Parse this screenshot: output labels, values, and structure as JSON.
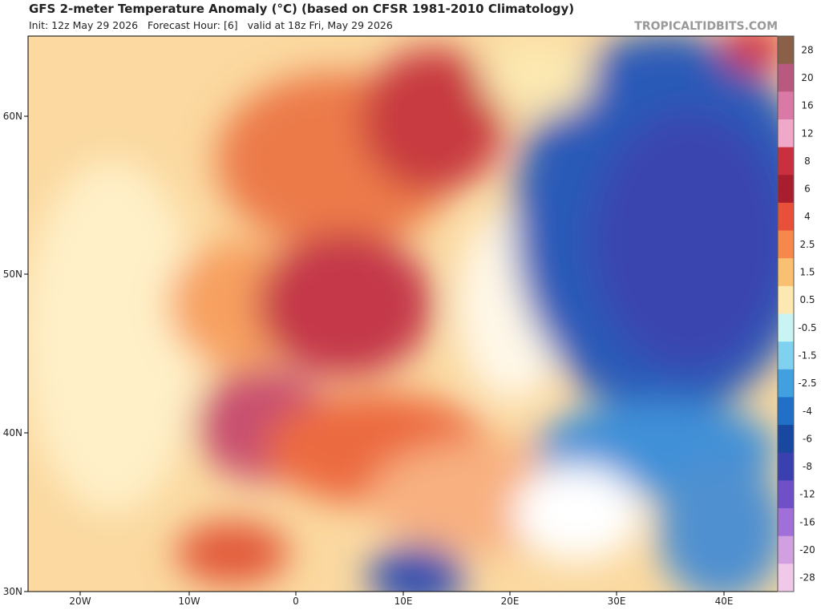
{
  "header": {
    "title": "GFS 2-meter Temperature Anomaly (°C) (based on CFSR 1981-2010 Climatology)",
    "subtitle": "Init: 12z May 29 2026   Forecast Hour: [6]   valid at 18z Fri, May 29 2026",
    "watermark": "TROPICALTIDBITS.COM"
  },
  "map": {
    "lat_labels": [
      "60N",
      "50N",
      "40N",
      "30N"
    ],
    "lon_labels": [
      "20W",
      "10W",
      "0",
      "10E",
      "20E",
      "30E",
      "40E"
    ]
  },
  "colorbar": {
    "labels": [
      "28",
      "20",
      "16",
      "12",
      "8",
      "6",
      "4",
      "2.5",
      "1.5",
      "0.5",
      "-0.5",
      "-1.5",
      "-2.5",
      "-4",
      "-6",
      "-8",
      "-12",
      "-16",
      "-20",
      "-28"
    ],
    "colors": [
      "#8b6048",
      "#b85a80",
      "#d97aa6",
      "#f0a8c8",
      "#c83040",
      "#a81e2e",
      "#e8503a",
      "#f5884a",
      "#f8c070",
      "#fce8b0",
      "#c8f4f4",
      "#80d0f0",
      "#40a0e0",
      "#2070c8",
      "#1848a0",
      "#3a40b0",
      "#7050c8",
      "#a070d8",
      "#d0a0e0",
      "#f0c8e8"
    ]
  }
}
